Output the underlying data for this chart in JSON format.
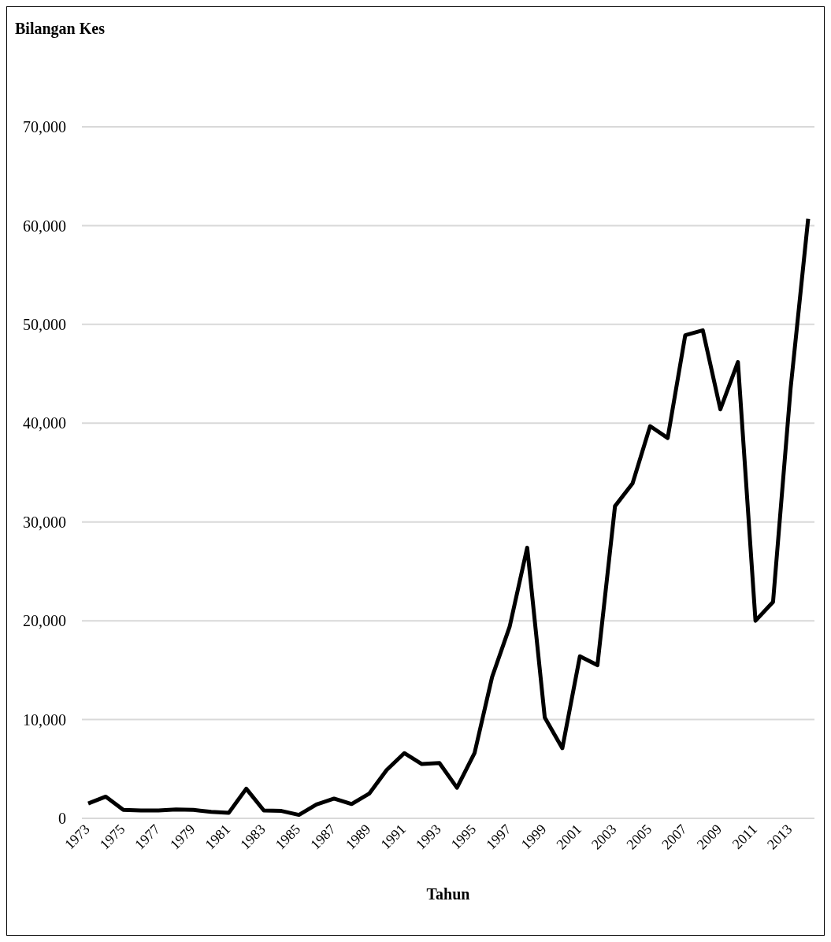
{
  "chart_data": {
    "type": "line",
    "annotations": [
      "Bilangan Kes"
    ],
    "xlabel": "Tahun",
    "categories": [
      "1973",
      null,
      "1975",
      null,
      "1977",
      null,
      "1979",
      null,
      "1981",
      null,
      "1983",
      null,
      "1985",
      null,
      "1987",
      null,
      "1989",
      null,
      "1991",
      null,
      "1993",
      null,
      "1995",
      null,
      "1997",
      null,
      "1999",
      null,
      "2001",
      null,
      "2003",
      null,
      "2005",
      null,
      "2007",
      null,
      "2009",
      null,
      "2011",
      null,
      "2013",
      null
    ],
    "series": [
      {
        "color": "#000000",
        "values": [
          1500,
          2200,
          850,
          800,
          800,
          900,
          850,
          650,
          550,
          3000,
          800,
          750,
          350,
          1400,
          2000,
          1450,
          2500,
          4900,
          6600,
          5500,
          5600,
          3100,
          6600,
          14300,
          19400,
          27400,
          10200,
          7100,
          16400,
          15500,
          31600,
          33900,
          39700,
          38500,
          48900,
          49400,
          41400,
          46200,
          20000,
          21900,
          43500,
          60700
        ]
      }
    ],
    "ylim": [
      0,
      70000
    ],
    "yticks": [
      0,
      {
        "value": 10000,
        "label": "10,000"
      },
      {
        "value": 20000,
        "label": "20,000"
      },
      {
        "value": 30000,
        "label": "30,000"
      },
      {
        "value": 40000,
        "label": "40,000"
      },
      {
        "value": 50000,
        "label": "50,000"
      },
      {
        "value": 60000,
        "label": "60,000"
      },
      {
        "value": 70000,
        "label": "70,000"
      }
    ],
    "grid": "y",
    "legend": false,
    "marker": "none",
    "line_style": "solid"
  }
}
